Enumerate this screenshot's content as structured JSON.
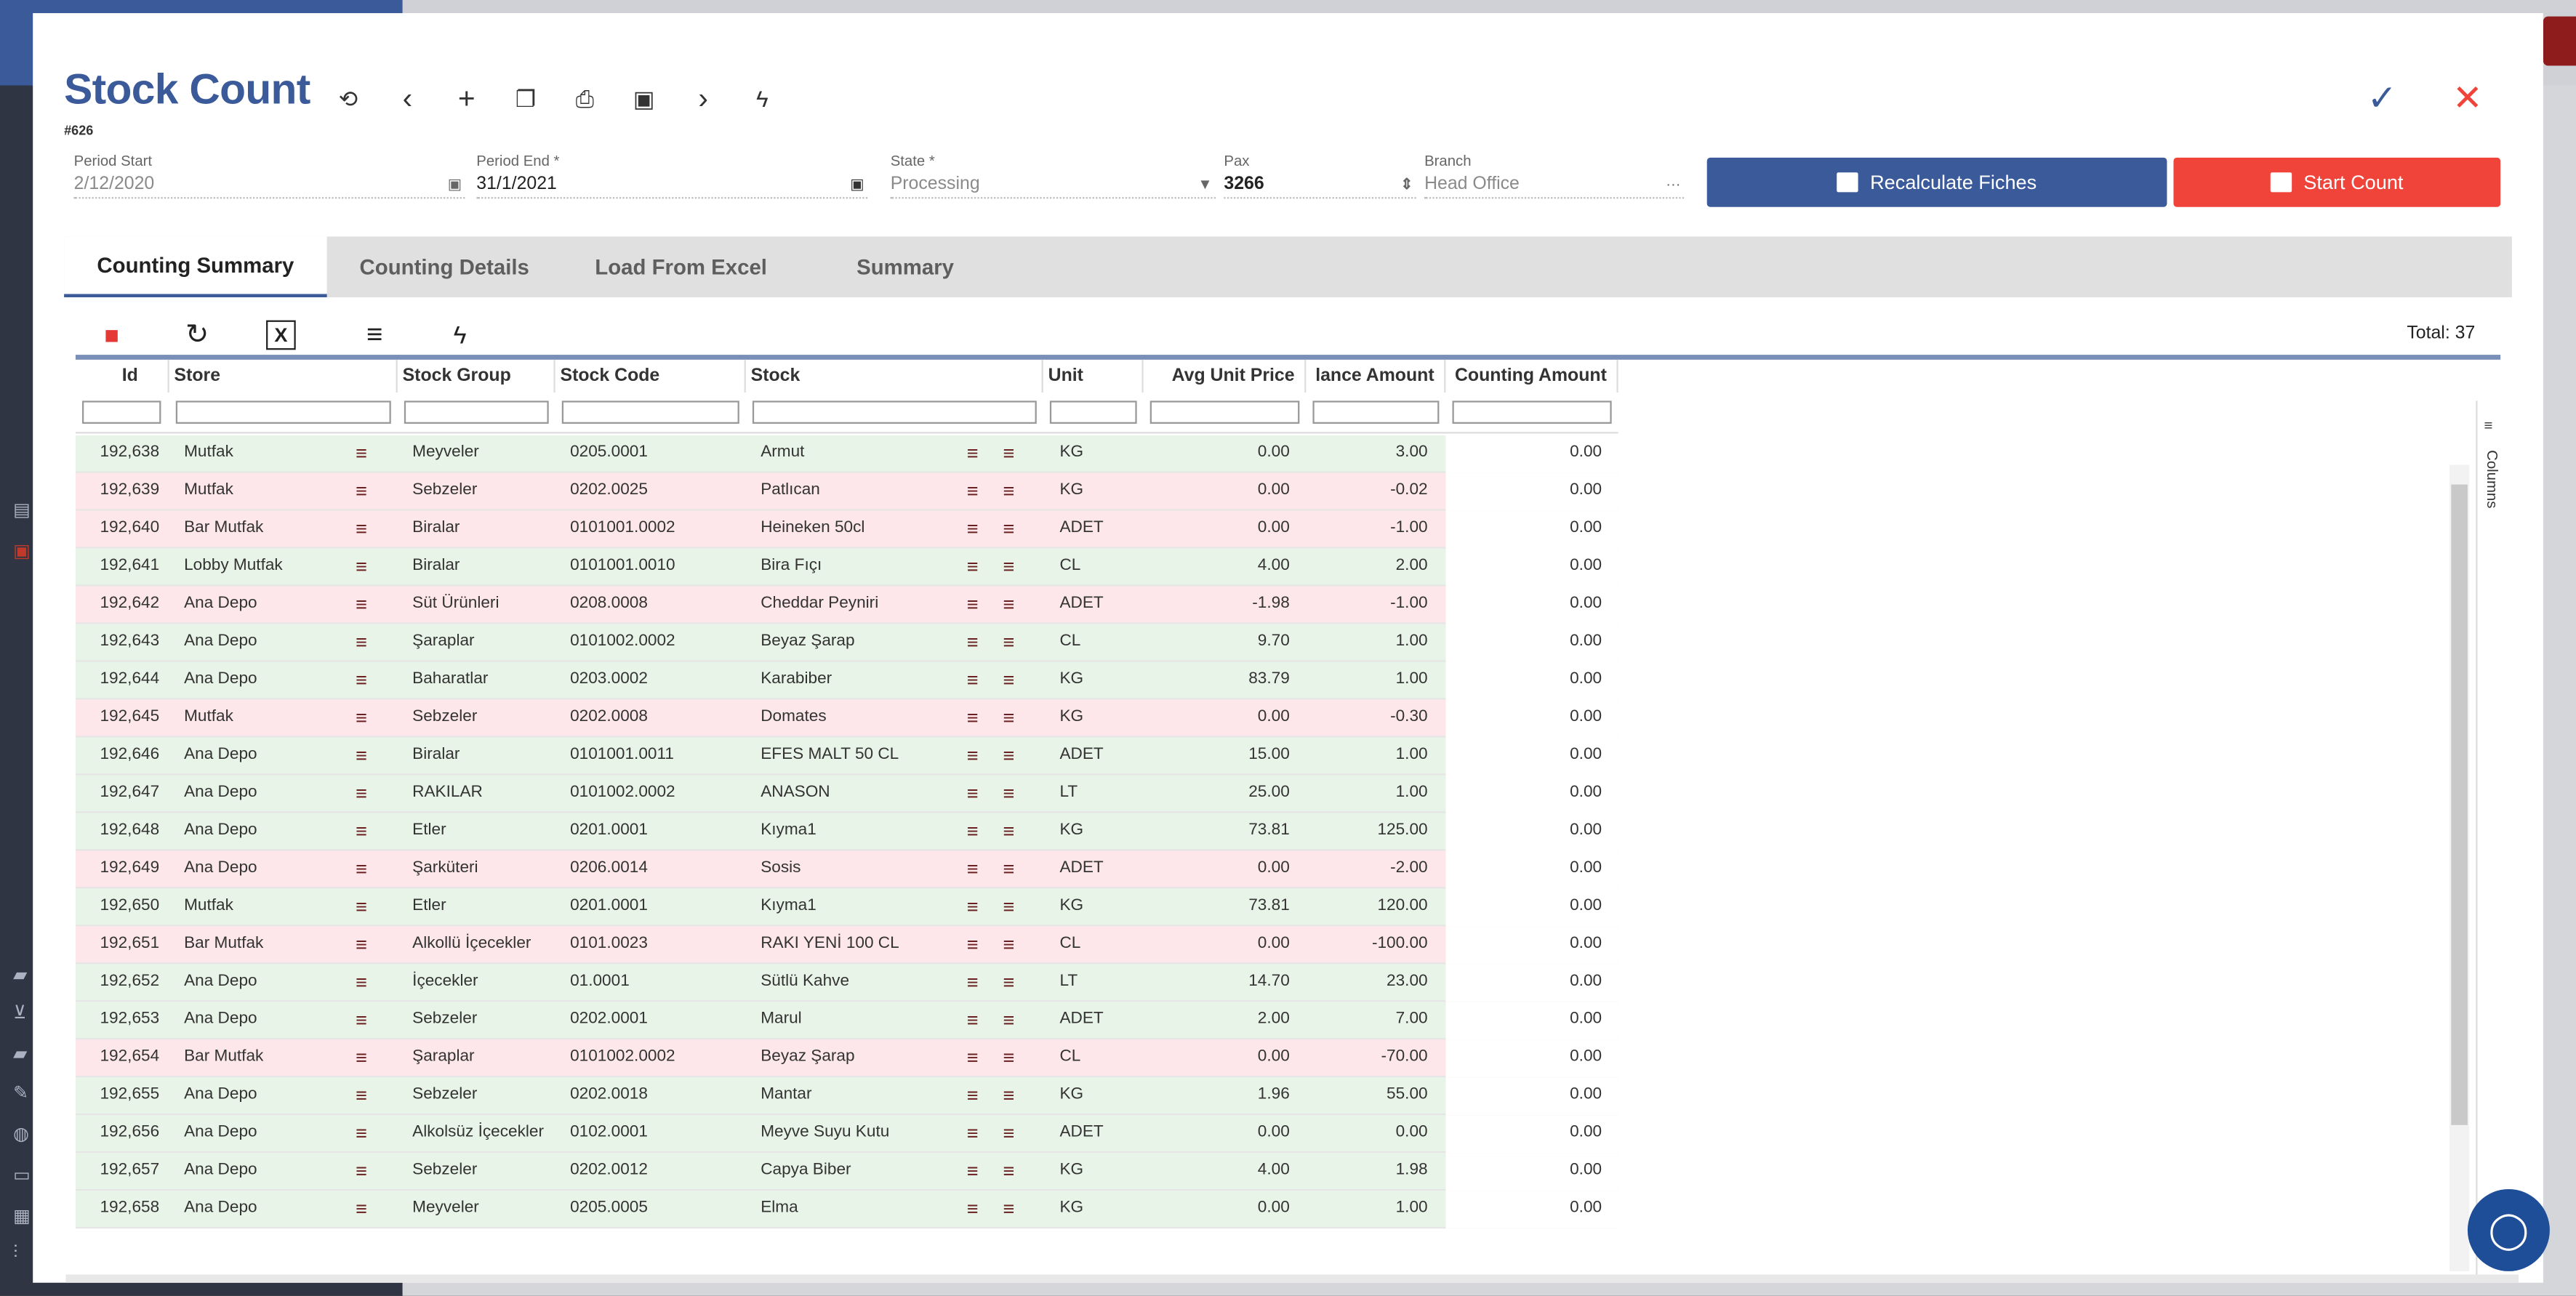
{
  "modal": {
    "title": "Stock Count",
    "doc_no": "#626"
  },
  "fields": {
    "period_start": {
      "label": "Period Start",
      "value": "2/12/2020"
    },
    "period_end": {
      "label": "Period End *",
      "value": "31/1/2021"
    },
    "state": {
      "label": "State *",
      "value": "Processing"
    },
    "pax": {
      "label": "Pax",
      "value": "3266"
    },
    "branch": {
      "label": "Branch",
      "value": "Head Office",
      "suffix": "···"
    }
  },
  "buttons": {
    "recalculate": "Recalculate Fiches",
    "start_count": "Start Count"
  },
  "tabs": [
    "Counting Summary",
    "Counting Details",
    "Load From Excel",
    "Summary"
  ],
  "active_tab": 0,
  "grid": {
    "total_label": "Total: 37",
    "columns_label": "Columns",
    "headers": {
      "id": "Id",
      "store": "Store",
      "stock_group": "Stock Group",
      "stock_code": "Stock Code",
      "stock": "Stock",
      "unit": "Unit",
      "avg_unit_price": "Avg Unit Price",
      "balance_amount": "lance Amount",
      "counting_amount": "Counting Amount"
    },
    "rows": [
      {
        "id": "192,638",
        "store": "Mutfak",
        "group": "Meyveler",
        "code": "0205.0001",
        "stock": "Armut",
        "unit": "KG",
        "price": "0.00",
        "balance": "3.00",
        "count": "0.00",
        "tone": "g"
      },
      {
        "id": "192,639",
        "store": "Mutfak",
        "group": "Sebzeler",
        "code": "0202.0025",
        "stock": "Patlıcan",
        "unit": "KG",
        "price": "0.00",
        "balance": "-0.02",
        "count": "0.00",
        "tone": "r"
      },
      {
        "id": "192,640",
        "store": "Bar Mutfak",
        "group": "Biralar",
        "code": "0101001.0002",
        "stock": "Heineken 50cl",
        "unit": "ADET",
        "price": "0.00",
        "balance": "-1.00",
        "count": "0.00",
        "tone": "r"
      },
      {
        "id": "192,641",
        "store": "Lobby Mutfak",
        "group": "Biralar",
        "code": "0101001.0010",
        "stock": "Bira Fıçı",
        "unit": "CL",
        "price": "4.00",
        "balance": "2.00",
        "count": "0.00",
        "tone": "g"
      },
      {
        "id": "192,642",
        "store": "Ana Depo",
        "group": "Süt Ürünleri",
        "code": "0208.0008",
        "stock": "Cheddar Peyniri",
        "unit": "ADET",
        "price": "-1.98",
        "balance": "-1.00",
        "count": "0.00",
        "tone": "r"
      },
      {
        "id": "192,643",
        "store": "Ana Depo",
        "group": "Şaraplar",
        "code": "0101002.0002",
        "stock": "Beyaz Şarap",
        "unit": "CL",
        "price": "9.70",
        "balance": "1.00",
        "count": "0.00",
        "tone": "g"
      },
      {
        "id": "192,644",
        "store": "Ana Depo",
        "group": "Baharatlar",
        "code": "0203.0002",
        "stock": "Karabiber",
        "unit": "KG",
        "price": "83.79",
        "balance": "1.00",
        "count": "0.00",
        "tone": "g"
      },
      {
        "id": "192,645",
        "store": "Mutfak",
        "group": "Sebzeler",
        "code": "0202.0008",
        "stock": "Domates",
        "unit": "KG",
        "price": "0.00",
        "balance": "-0.30",
        "count": "0.00",
        "tone": "r"
      },
      {
        "id": "192,646",
        "store": "Ana Depo",
        "group": "Biralar",
        "code": "0101001.0011",
        "stock": "EFES MALT 50 CL",
        "unit": "ADET",
        "price": "15.00",
        "balance": "1.00",
        "count": "0.00",
        "tone": "g"
      },
      {
        "id": "192,647",
        "store": "Ana Depo",
        "group": "RAKILAR",
        "code": "0101002.0002",
        "stock": "ANASON",
        "unit": "LT",
        "price": "25.00",
        "balance": "1.00",
        "count": "0.00",
        "tone": "g"
      },
      {
        "id": "192,648",
        "store": "Ana Depo",
        "group": "Etler",
        "code": "0201.0001",
        "stock": "Kıyma1",
        "unit": "KG",
        "price": "73.81",
        "balance": "125.00",
        "count": "0.00",
        "tone": "g"
      },
      {
        "id": "192,649",
        "store": "Ana Depo",
        "group": "Şarküteri",
        "code": "0206.0014",
        "stock": "Sosis",
        "unit": "ADET",
        "price": "0.00",
        "balance": "-2.00",
        "count": "0.00",
        "tone": "r"
      },
      {
        "id": "192,650",
        "store": "Mutfak",
        "group": "Etler",
        "code": "0201.0001",
        "stock": "Kıyma1",
        "unit": "KG",
        "price": "73.81",
        "balance": "120.00",
        "count": "0.00",
        "tone": "g"
      },
      {
        "id": "192,651",
        "store": "Bar Mutfak",
        "group": "Alkollü İçecekler",
        "code": "0101.0023",
        "stock": "RAKI YENİ 100 CL",
        "unit": "CL",
        "price": "0.00",
        "balance": "-100.00",
        "count": "0.00",
        "tone": "r"
      },
      {
        "id": "192,652",
        "store": "Ana Depo",
        "group": "İçecekler",
        "code": "01.0001",
        "stock": "Sütlü Kahve",
        "unit": "LT",
        "price": "14.70",
        "balance": "23.00",
        "count": "0.00",
        "tone": "g"
      },
      {
        "id": "192,653",
        "store": "Ana Depo",
        "group": "Sebzeler",
        "code": "0202.0001",
        "stock": "Marul",
        "unit": "ADET",
        "price": "2.00",
        "balance": "7.00",
        "count": "0.00",
        "tone": "g"
      },
      {
        "id": "192,654",
        "store": "Bar Mutfak",
        "group": "Şaraplar",
        "code": "0101002.0002",
        "stock": "Beyaz Şarap",
        "unit": "CL",
        "price": "0.00",
        "balance": "-70.00",
        "count": "0.00",
        "tone": "r"
      },
      {
        "id": "192,655",
        "store": "Ana Depo",
        "group": "Sebzeler",
        "code": "0202.0018",
        "stock": "Mantar",
        "unit": "KG",
        "price": "1.96",
        "balance": "55.00",
        "count": "0.00",
        "tone": "g"
      },
      {
        "id": "192,656",
        "store": "Ana Depo",
        "group": "Alkolsüz İçecekler",
        "code": "0102.0001",
        "stock": "Meyve Suyu Kutu",
        "unit": "ADET",
        "price": "0.00",
        "balance": "0.00",
        "count": "0.00",
        "tone": "g"
      },
      {
        "id": "192,657",
        "store": "Ana Depo",
        "group": "Sebzeler",
        "code": "0202.0012",
        "stock": "Capya Biber",
        "unit": "KG",
        "price": "4.00",
        "balance": "1.98",
        "count": "0.00",
        "tone": "g"
      },
      {
        "id": "192,658",
        "store": "Ana Depo",
        "group": "Meyveler",
        "code": "0205.0005",
        "stock": "Elma",
        "unit": "KG",
        "price": "0.00",
        "balance": "1.00",
        "count": "0.00",
        "tone": "g"
      }
    ]
  },
  "colors": {
    "accent": "#3b5a9a",
    "danger": "#f0433a",
    "row_positive": "#e8f4e7",
    "row_negative": "#fde7ea"
  }
}
